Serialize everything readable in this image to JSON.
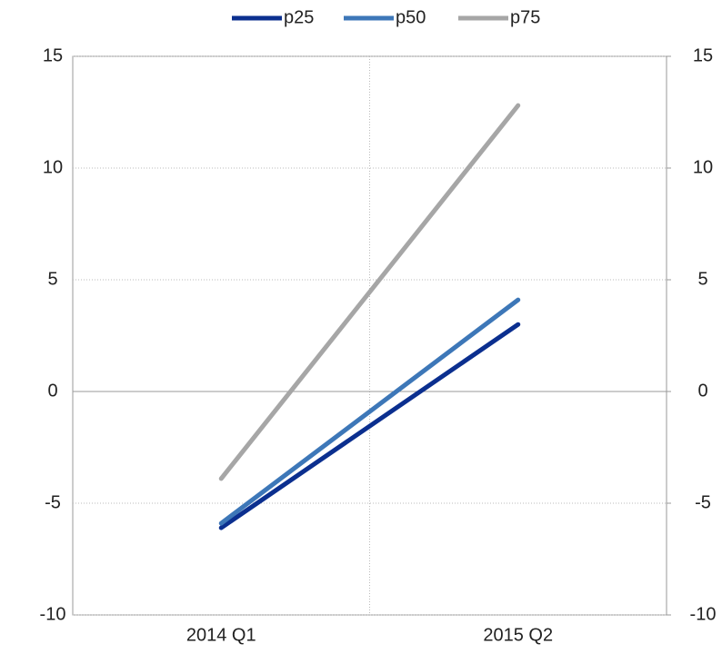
{
  "chart_data": {
    "type": "line",
    "categories": [
      "2014 Q1",
      "2015 Q2"
    ],
    "series": [
      {
        "name": "p25",
        "color": "#0b2f8f",
        "values": [
          -6.1,
          3.0
        ]
      },
      {
        "name": "p50",
        "color": "#3d77b8",
        "values": [
          -5.9,
          4.1
        ]
      },
      {
        "name": "p75",
        "color": "#a6a6a6",
        "values": [
          -3.9,
          12.8
        ]
      }
    ],
    "ylim": [
      -10,
      15
    ],
    "yticks": [
      -10,
      -5,
      0,
      5,
      10,
      15
    ],
    "y2lim": [
      -10,
      15
    ],
    "y2ticks": [
      -10,
      -5,
      0,
      5,
      10,
      15
    ],
    "grid": true,
    "legend": "top"
  }
}
